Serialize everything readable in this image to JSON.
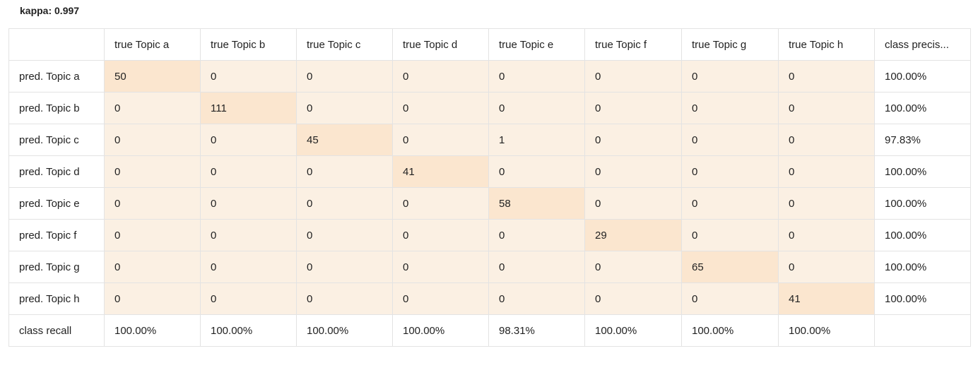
{
  "kappa_label": "kappa: 0.997",
  "columns": [
    "",
    "true Topic a",
    "true Topic b",
    "true Topic c",
    "true Topic d",
    "true Topic e",
    "true Topic f",
    "true Topic g",
    "true Topic h",
    "class precis..."
  ],
  "rows": [
    {
      "label": "pred. Topic a",
      "values": [
        "50",
        "0",
        "0",
        "0",
        "0",
        "0",
        "0",
        "0"
      ],
      "precision": "100.00%"
    },
    {
      "label": "pred. Topic b",
      "values": [
        "0",
        "111",
        "0",
        "0",
        "0",
        "0",
        "0",
        "0"
      ],
      "precision": "100.00%"
    },
    {
      "label": "pred. Topic c",
      "values": [
        "0",
        "0",
        "45",
        "0",
        "1",
        "0",
        "0",
        "0"
      ],
      "precision": "97.83%"
    },
    {
      "label": "pred. Topic d",
      "values": [
        "0",
        "0",
        "0",
        "41",
        "0",
        "0",
        "0",
        "0"
      ],
      "precision": "100.00%"
    },
    {
      "label": "pred. Topic e",
      "values": [
        "0",
        "0",
        "0",
        "0",
        "58",
        "0",
        "0",
        "0"
      ],
      "precision": "100.00%"
    },
    {
      "label": "pred. Topic f",
      "values": [
        "0",
        "0",
        "0",
        "0",
        "0",
        "29",
        "0",
        "0"
      ],
      "precision": "100.00%"
    },
    {
      "label": "pred. Topic g",
      "values": [
        "0",
        "0",
        "0",
        "0",
        "0",
        "0",
        "65",
        "0"
      ],
      "precision": "100.00%"
    },
    {
      "label": "pred. Topic h",
      "values": [
        "0",
        "0",
        "0",
        "0",
        "0",
        "0",
        "0",
        "41"
      ],
      "precision": "100.00%"
    }
  ],
  "recall_row": {
    "label": "class recall",
    "values": [
      "100.00%",
      "100.00%",
      "100.00%",
      "100.00%",
      "98.31%",
      "100.00%",
      "100.00%",
      "100.00%",
      ""
    ]
  },
  "colors": {
    "cell_bg": "#fbf0e3",
    "diagonal_bg": "#fbe6cf",
    "border": "#e3e3e3"
  }
}
